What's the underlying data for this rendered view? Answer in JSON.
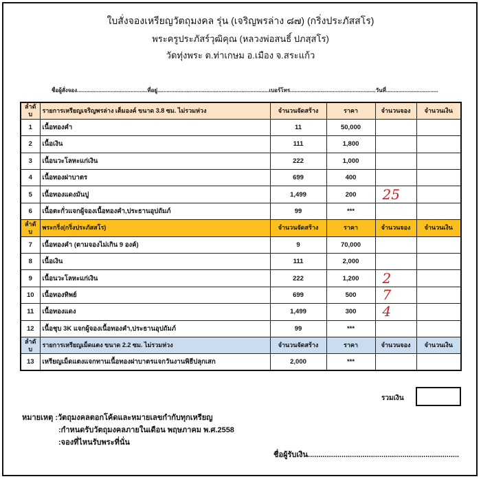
{
  "header": {
    "line1": "ใบสั่งจองเหรียญวัตถุมงคล  รุ่น  (เจริญพรล่าง ๘๗) (กริ่งประภัสสโร)",
    "line2": "พระครูประภัสร์วุฒิคุณ  (หลวงพ่อสนธิ์  ปภสฺสโร)",
    "line3": "วัดทุ่งพระ  ต.ท่าเกษม  อ.เมือง  จ.สระแก้ว"
  },
  "fill_line": "ชื่อผู้สั่งจอง..............................................ที่อยู่.........................................................................เบอร์โทร........................................................วันที่..................................",
  "sections": [
    {
      "header": [
        "ลำดับ",
        "รายการเหรียญเจริญพรล่าง เต็มองค์ ขนาด 3.8 ซม. ไม่รวมห่วง",
        "จำนวนจัดสร้าง",
        "ราคา",
        "จำนวนจอง",
        "จำนวนเงิน"
      ],
      "rows": [
        [
          "1",
          "เนื้อทองคำ",
          "11",
          "50,000",
          "",
          ""
        ],
        [
          "2",
          "เนื้อเงิน",
          "111",
          "1,800",
          "",
          ""
        ],
        [
          "3",
          "เนื้อนวะโลหะแก่เงิน",
          "222",
          "1,000",
          "",
          ""
        ],
        [
          "4",
          "เนื้อทองฝาบาตร",
          "699",
          "400",
          "",
          ""
        ],
        [
          "5",
          "เนื้อทองแดงมันปู",
          "1,499",
          "200",
          "25",
          ""
        ],
        [
          "6",
          "เนื้อตะกั่วแจกผู้จองเนื้อทองคำ,ประธานอุปถัมภ์",
          "99",
          "***",
          "",
          ""
        ]
      ]
    },
    {
      "header": [
        "ลำดับ",
        "พระกริ่ง(กริ่งประภัสสโร)",
        "จำนวนจัดสร้าง",
        "ราคา",
        "จำนวนจอง",
        "จำนวนเงิน"
      ],
      "rows": [
        [
          "7",
          "เนื้อทองคำ (ตามจองไม่เกิน 9 องค์)",
          "9",
          "70,000",
          "",
          ""
        ],
        [
          "8",
          "เนื้อเงิน",
          "111",
          "2,000",
          "",
          ""
        ],
        [
          "9",
          "เนื้อนวะโลหะแก่เงิน",
          "222",
          "1,200",
          "2",
          ""
        ],
        [
          "10",
          "เนื้อทองทิพย์",
          "699",
          "500",
          "7",
          ""
        ],
        [
          "11",
          "เนื้อทองแดง",
          "1,499",
          "300",
          "4",
          ""
        ],
        [
          "12",
          "เนื้อชุบ 3K แจกผู้จองเนื้อทองคำ,ประธานอุปถัมภ์",
          "99",
          "***",
          "",
          ""
        ]
      ]
    },
    {
      "header": [
        "ลำดับ",
        "รายการเหรียญเม็ดแตง ขนาด 2.2 ซม. ไม่รวมห่วง",
        "จำนวนจัดสร้าง",
        "ราคา",
        "จำนวนจอง",
        "จำนวนเงิน"
      ],
      "rows": [
        [
          "13",
          "เหรียญเม็ดแตงแจกทานเนื้อทองฝาบาตรแจกวันงานพิธีปลุกเสก",
          "2,000",
          "***",
          "",
          ""
        ]
      ]
    }
  ],
  "colors": {
    "section1": "#fce3c6",
    "section2": "#fcc01e",
    "section3": "#c9dcf0",
    "handwriting": "#d41a1a"
  },
  "total_label": "รวมเงิน",
  "notes": [
    "หมายเหตุ :วัตถุมงคลตอกโค้ดและหมายเลขกำกับทุกเหรียญ",
    ":กำหนดรับวัตถุมงคลภายในเดือน พฤษภาคม พ.ศ.2558",
    ":จองที่ไหนรับพระที่นั่น"
  ],
  "receiver": "ชื่อผู้รับเงิน........................................................................"
}
